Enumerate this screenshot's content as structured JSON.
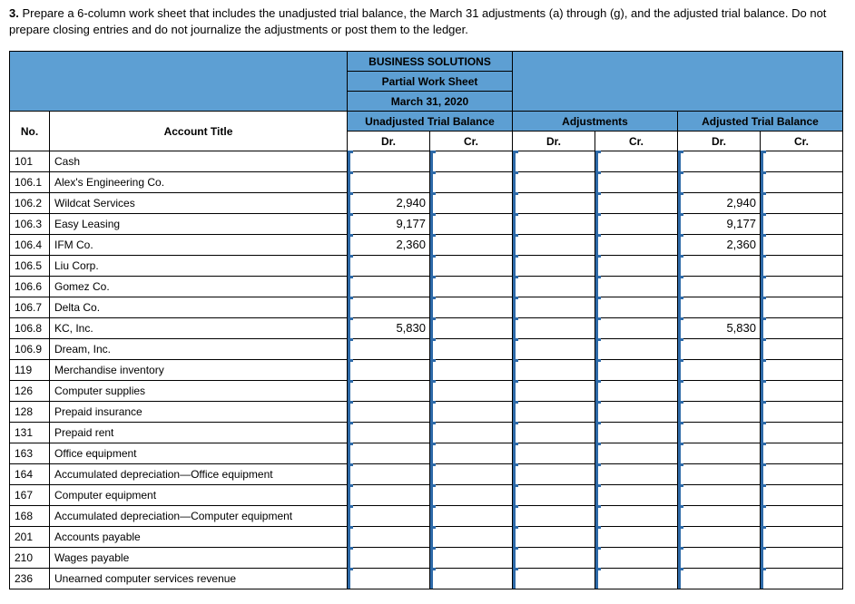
{
  "instruction": {
    "number": "3.",
    "text": "Prepare a 6-column work sheet that includes the unadjusted trial balance, the March 31 adjustments (a) through (g), and the adjusted trial balance. Do not prepare closing entries and do not journalize the adjustments or post them to the ledger."
  },
  "header": {
    "company": "BUSINESS SOLUTIONS",
    "title": "Partial Work Sheet",
    "date": "March 31, 2020",
    "section1": "Unadjusted Trial Balance",
    "section2": "Adjustments",
    "section3": "Adjusted Trial Balance",
    "col_no": "No.",
    "col_title": "Account Title",
    "dr": "Dr.",
    "cr": "Cr."
  },
  "rows": [
    {
      "no": "101",
      "title": "Cash",
      "utb_dr": "",
      "utb_cr": "",
      "adj_dr": "",
      "adj_cr": "",
      "atb_dr": "",
      "atb_cr": ""
    },
    {
      "no": "106.1",
      "title": "Alex's Engineering Co.",
      "utb_dr": "",
      "utb_cr": "",
      "adj_dr": "",
      "adj_cr": "",
      "atb_dr": "",
      "atb_cr": ""
    },
    {
      "no": "106.2",
      "title": "Wildcat Services",
      "utb_dr": "2,940",
      "utb_cr": "",
      "adj_dr": "",
      "adj_cr": "",
      "atb_dr": "2,940",
      "atb_cr": ""
    },
    {
      "no": "106.3",
      "title": "Easy Leasing",
      "utb_dr": "9,177",
      "utb_cr": "",
      "adj_dr": "",
      "adj_cr": "",
      "atb_dr": "9,177",
      "atb_cr": ""
    },
    {
      "no": "106.4",
      "title": "IFM Co.",
      "utb_dr": "2,360",
      "utb_cr": "",
      "adj_dr": "",
      "adj_cr": "",
      "atb_dr": "2,360",
      "atb_cr": ""
    },
    {
      "no": "106.5",
      "title": "Liu Corp.",
      "utb_dr": "",
      "utb_cr": "",
      "adj_dr": "",
      "adj_cr": "",
      "atb_dr": "",
      "atb_cr": ""
    },
    {
      "no": "106.6",
      "title": "Gomez Co.",
      "utb_dr": "",
      "utb_cr": "",
      "adj_dr": "",
      "adj_cr": "",
      "atb_dr": "",
      "atb_cr": ""
    },
    {
      "no": "106.7",
      "title": "Delta Co.",
      "utb_dr": "",
      "utb_cr": "",
      "adj_dr": "",
      "adj_cr": "",
      "atb_dr": "",
      "atb_cr": ""
    },
    {
      "no": "106.8",
      "title": "KC, Inc.",
      "utb_dr": "5,830",
      "utb_cr": "",
      "adj_dr": "",
      "adj_cr": "",
      "atb_dr": "5,830",
      "atb_cr": ""
    },
    {
      "no": "106.9",
      "title": "Dream, Inc.",
      "utb_dr": "",
      "utb_cr": "",
      "adj_dr": "",
      "adj_cr": "",
      "atb_dr": "",
      "atb_cr": ""
    },
    {
      "no": "119",
      "title": "Merchandise inventory",
      "utb_dr": "",
      "utb_cr": "",
      "adj_dr": "",
      "adj_cr": "",
      "atb_dr": "",
      "atb_cr": ""
    },
    {
      "no": "126",
      "title": "Computer supplies",
      "utb_dr": "",
      "utb_cr": "",
      "adj_dr": "",
      "adj_cr": "",
      "atb_dr": "",
      "atb_cr": ""
    },
    {
      "no": "128",
      "title": "Prepaid insurance",
      "utb_dr": "",
      "utb_cr": "",
      "adj_dr": "",
      "adj_cr": "",
      "atb_dr": "",
      "atb_cr": ""
    },
    {
      "no": "131",
      "title": "Prepaid rent",
      "utb_dr": "",
      "utb_cr": "",
      "adj_dr": "",
      "adj_cr": "",
      "atb_dr": "",
      "atb_cr": ""
    },
    {
      "no": "163",
      "title": "Office equipment",
      "utb_dr": "",
      "utb_cr": "",
      "adj_dr": "",
      "adj_cr": "",
      "atb_dr": "",
      "atb_cr": ""
    },
    {
      "no": "164",
      "title": "Accumulated depreciation—Office equipment",
      "utb_dr": "",
      "utb_cr": "",
      "adj_dr": "",
      "adj_cr": "",
      "atb_dr": "",
      "atb_cr": ""
    },
    {
      "no": "167",
      "title": "Computer equipment",
      "utb_dr": "",
      "utb_cr": "",
      "adj_dr": "",
      "adj_cr": "",
      "atb_dr": "",
      "atb_cr": ""
    },
    {
      "no": "168",
      "title": "Accumulated depreciation—Computer equipment",
      "utb_dr": "",
      "utb_cr": "",
      "adj_dr": "",
      "adj_cr": "",
      "atb_dr": "",
      "atb_cr": ""
    },
    {
      "no": "201",
      "title": "Accounts payable",
      "utb_dr": "",
      "utb_cr": "",
      "adj_dr": "",
      "adj_cr": "",
      "atb_dr": "",
      "atb_cr": ""
    },
    {
      "no": "210",
      "title": "Wages payable",
      "utb_dr": "",
      "utb_cr": "",
      "adj_dr": "",
      "adj_cr": "",
      "atb_dr": "",
      "atb_cr": ""
    },
    {
      "no": "236",
      "title": "Unearned computer services revenue",
      "utb_dr": "",
      "utb_cr": "",
      "adj_dr": "",
      "adj_cr": "",
      "atb_dr": "",
      "atb_cr": ""
    }
  ]
}
